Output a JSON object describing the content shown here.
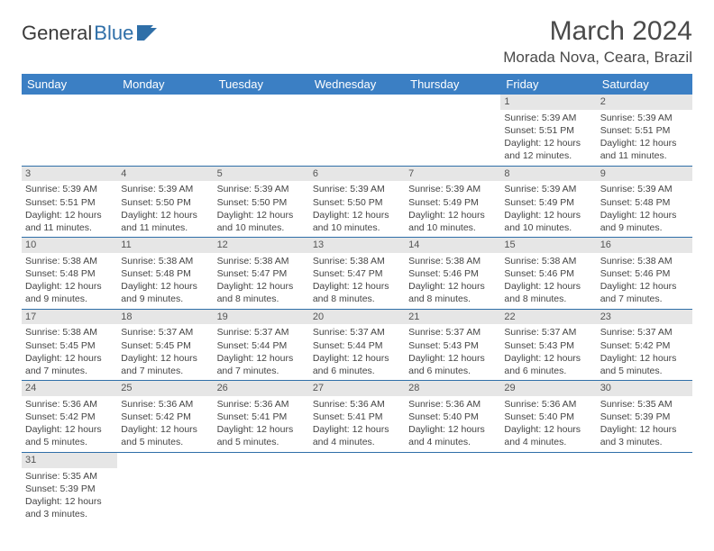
{
  "logo": {
    "text1": "General",
    "text2": "Blue"
  },
  "title": "March 2024",
  "location": "Morada Nova, Ceara, Brazil",
  "colors": {
    "header_bg": "#3b7fc4",
    "header_text": "#ffffff",
    "daynum_bg": "#e6e6e6",
    "row_border": "#2f6fa8",
    "logo_accent": "#2f6fa8"
  },
  "weekdays": [
    "Sunday",
    "Monday",
    "Tuesday",
    "Wednesday",
    "Thursday",
    "Friday",
    "Saturday"
  ],
  "weeks": [
    [
      null,
      null,
      null,
      null,
      null,
      {
        "n": "1",
        "sr": "Sunrise: 5:39 AM",
        "ss": "Sunset: 5:51 PM",
        "d1": "Daylight: 12 hours",
        "d2": "and 12 minutes."
      },
      {
        "n": "2",
        "sr": "Sunrise: 5:39 AM",
        "ss": "Sunset: 5:51 PM",
        "d1": "Daylight: 12 hours",
        "d2": "and 11 minutes."
      }
    ],
    [
      {
        "n": "3",
        "sr": "Sunrise: 5:39 AM",
        "ss": "Sunset: 5:51 PM",
        "d1": "Daylight: 12 hours",
        "d2": "and 11 minutes."
      },
      {
        "n": "4",
        "sr": "Sunrise: 5:39 AM",
        "ss": "Sunset: 5:50 PM",
        "d1": "Daylight: 12 hours",
        "d2": "and 11 minutes."
      },
      {
        "n": "5",
        "sr": "Sunrise: 5:39 AM",
        "ss": "Sunset: 5:50 PM",
        "d1": "Daylight: 12 hours",
        "d2": "and 10 minutes."
      },
      {
        "n": "6",
        "sr": "Sunrise: 5:39 AM",
        "ss": "Sunset: 5:50 PM",
        "d1": "Daylight: 12 hours",
        "d2": "and 10 minutes."
      },
      {
        "n": "7",
        "sr": "Sunrise: 5:39 AM",
        "ss": "Sunset: 5:49 PM",
        "d1": "Daylight: 12 hours",
        "d2": "and 10 minutes."
      },
      {
        "n": "8",
        "sr": "Sunrise: 5:39 AM",
        "ss": "Sunset: 5:49 PM",
        "d1": "Daylight: 12 hours",
        "d2": "and 10 minutes."
      },
      {
        "n": "9",
        "sr": "Sunrise: 5:39 AM",
        "ss": "Sunset: 5:48 PM",
        "d1": "Daylight: 12 hours",
        "d2": "and 9 minutes."
      }
    ],
    [
      {
        "n": "10",
        "sr": "Sunrise: 5:38 AM",
        "ss": "Sunset: 5:48 PM",
        "d1": "Daylight: 12 hours",
        "d2": "and 9 minutes."
      },
      {
        "n": "11",
        "sr": "Sunrise: 5:38 AM",
        "ss": "Sunset: 5:48 PM",
        "d1": "Daylight: 12 hours",
        "d2": "and 9 minutes."
      },
      {
        "n": "12",
        "sr": "Sunrise: 5:38 AM",
        "ss": "Sunset: 5:47 PM",
        "d1": "Daylight: 12 hours",
        "d2": "and 8 minutes."
      },
      {
        "n": "13",
        "sr": "Sunrise: 5:38 AM",
        "ss": "Sunset: 5:47 PM",
        "d1": "Daylight: 12 hours",
        "d2": "and 8 minutes."
      },
      {
        "n": "14",
        "sr": "Sunrise: 5:38 AM",
        "ss": "Sunset: 5:46 PM",
        "d1": "Daylight: 12 hours",
        "d2": "and 8 minutes."
      },
      {
        "n": "15",
        "sr": "Sunrise: 5:38 AM",
        "ss": "Sunset: 5:46 PM",
        "d1": "Daylight: 12 hours",
        "d2": "and 8 minutes."
      },
      {
        "n": "16",
        "sr": "Sunrise: 5:38 AM",
        "ss": "Sunset: 5:46 PM",
        "d1": "Daylight: 12 hours",
        "d2": "and 7 minutes."
      }
    ],
    [
      {
        "n": "17",
        "sr": "Sunrise: 5:38 AM",
        "ss": "Sunset: 5:45 PM",
        "d1": "Daylight: 12 hours",
        "d2": "and 7 minutes."
      },
      {
        "n": "18",
        "sr": "Sunrise: 5:37 AM",
        "ss": "Sunset: 5:45 PM",
        "d1": "Daylight: 12 hours",
        "d2": "and 7 minutes."
      },
      {
        "n": "19",
        "sr": "Sunrise: 5:37 AM",
        "ss": "Sunset: 5:44 PM",
        "d1": "Daylight: 12 hours",
        "d2": "and 7 minutes."
      },
      {
        "n": "20",
        "sr": "Sunrise: 5:37 AM",
        "ss": "Sunset: 5:44 PM",
        "d1": "Daylight: 12 hours",
        "d2": "and 6 minutes."
      },
      {
        "n": "21",
        "sr": "Sunrise: 5:37 AM",
        "ss": "Sunset: 5:43 PM",
        "d1": "Daylight: 12 hours",
        "d2": "and 6 minutes."
      },
      {
        "n": "22",
        "sr": "Sunrise: 5:37 AM",
        "ss": "Sunset: 5:43 PM",
        "d1": "Daylight: 12 hours",
        "d2": "and 6 minutes."
      },
      {
        "n": "23",
        "sr": "Sunrise: 5:37 AM",
        "ss": "Sunset: 5:42 PM",
        "d1": "Daylight: 12 hours",
        "d2": "and 5 minutes."
      }
    ],
    [
      {
        "n": "24",
        "sr": "Sunrise: 5:36 AM",
        "ss": "Sunset: 5:42 PM",
        "d1": "Daylight: 12 hours",
        "d2": "and 5 minutes."
      },
      {
        "n": "25",
        "sr": "Sunrise: 5:36 AM",
        "ss": "Sunset: 5:42 PM",
        "d1": "Daylight: 12 hours",
        "d2": "and 5 minutes."
      },
      {
        "n": "26",
        "sr": "Sunrise: 5:36 AM",
        "ss": "Sunset: 5:41 PM",
        "d1": "Daylight: 12 hours",
        "d2": "and 5 minutes."
      },
      {
        "n": "27",
        "sr": "Sunrise: 5:36 AM",
        "ss": "Sunset: 5:41 PM",
        "d1": "Daylight: 12 hours",
        "d2": "and 4 minutes."
      },
      {
        "n": "28",
        "sr": "Sunrise: 5:36 AM",
        "ss": "Sunset: 5:40 PM",
        "d1": "Daylight: 12 hours",
        "d2": "and 4 minutes."
      },
      {
        "n": "29",
        "sr": "Sunrise: 5:36 AM",
        "ss": "Sunset: 5:40 PM",
        "d1": "Daylight: 12 hours",
        "d2": "and 4 minutes."
      },
      {
        "n": "30",
        "sr": "Sunrise: 5:35 AM",
        "ss": "Sunset: 5:39 PM",
        "d1": "Daylight: 12 hours",
        "d2": "and 3 minutes."
      }
    ],
    [
      {
        "n": "31",
        "sr": "Sunrise: 5:35 AM",
        "ss": "Sunset: 5:39 PM",
        "d1": "Daylight: 12 hours",
        "d2": "and 3 minutes."
      },
      null,
      null,
      null,
      null,
      null,
      null
    ]
  ]
}
